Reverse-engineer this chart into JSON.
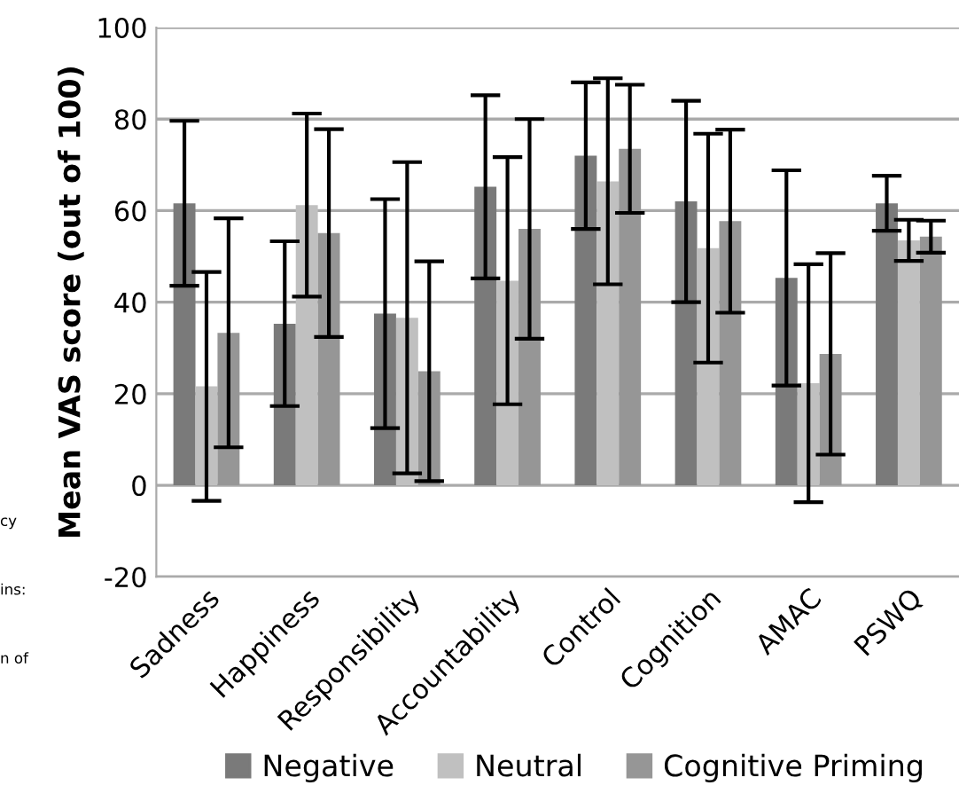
{
  "chart_data": {
    "type": "bar",
    "ylabel": "Mean VAS score (out of 100)",
    "categories": [
      "Sadness",
      "Happiness",
      "Responsibility",
      "Accountability",
      "Control",
      "Cognition",
      "AMAC",
      "PSWQ"
    ],
    "series": [
      {
        "name": "Negative",
        "color": "#7a7a7a",
        "values": [
          61.6,
          35.3,
          37.5,
          65.2,
          72,
          62,
          45.3,
          61.6
        ],
        "errors": [
          18,
          18,
          25,
          20,
          16,
          22,
          23.5,
          6
        ]
      },
      {
        "name": "Neutral",
        "color": "#c0c0c0",
        "values": [
          21.6,
          61.2,
          36.6,
          44.7,
          66.4,
          51.8,
          22.3,
          53.5
        ],
        "errors": [
          25,
          20,
          34,
          27,
          22.5,
          25,
          26,
          4.5
        ]
      },
      {
        "name": "Cognitive Priming",
        "color": "#969696",
        "values": [
          33.3,
          55.1,
          24.9,
          56,
          73.5,
          57.7,
          28.7,
          54.3
        ],
        "errors": [
          25,
          22.7,
          24,
          24,
          14,
          20,
          22,
          3.5
        ]
      }
    ],
    "ylim": [
      -20,
      100
    ],
    "yticks": [
      -20,
      0,
      20,
      40,
      60,
      80,
      100
    ],
    "grid": "y",
    "legend": "bottom",
    "annotations": [
      "cy",
      "ins:",
      "n of"
    ]
  }
}
